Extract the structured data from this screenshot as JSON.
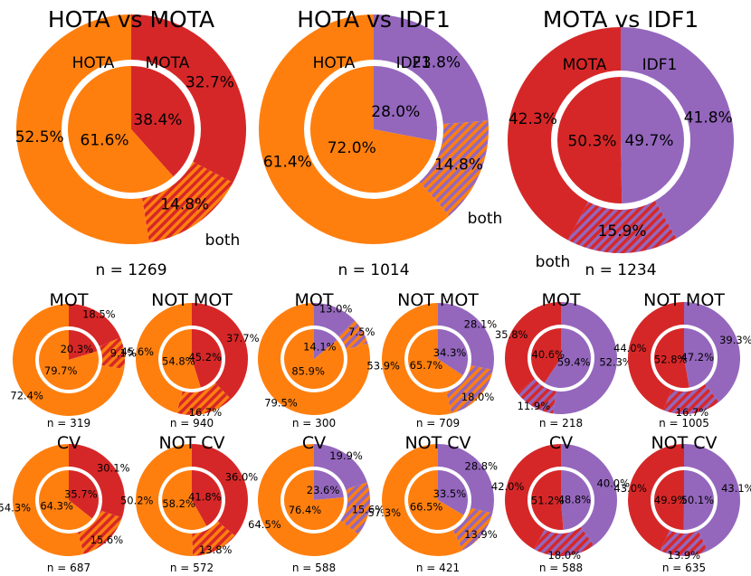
{
  "colors": {
    "orange": "#ff7f0e",
    "red": "#d62728",
    "purple": "#9467bd",
    "ring_gap": "#ffffff"
  },
  "chart_data": [
    {
      "type": "pie",
      "size": "large",
      "title": "HOTA vs MOTA",
      "n_label": "n = 1269",
      "left_metric": "HOTA",
      "right_metric": "MOTA",
      "left_color": "orange",
      "right_color": "red",
      "outer": [
        {
          "label": "MOTA",
          "value": 32.7,
          "text": "32.7%"
        },
        {
          "label": "both",
          "value": 14.8,
          "text": "14.8%"
        },
        {
          "label": "HOTA",
          "value": 52.5,
          "text": "52.5%"
        }
      ],
      "inner": [
        {
          "label": "MOTA",
          "value": 38.4,
          "text": "38.4%"
        },
        {
          "label": "HOTA",
          "value": 61.6,
          "text": "61.6%"
        }
      ],
      "category_labels": [
        "HOTA",
        "MOTA",
        "both"
      ]
    },
    {
      "type": "pie",
      "size": "large",
      "title": "HOTA vs IDF1",
      "n_label": "n = 1014",
      "left_metric": "HOTA",
      "right_metric": "IDF1",
      "left_color": "orange",
      "right_color": "purple",
      "outer": [
        {
          "label": "IDF1",
          "value": 23.8,
          "text": "23.8%"
        },
        {
          "label": "both",
          "value": 14.8,
          "text": "14.8%"
        },
        {
          "label": "HOTA",
          "value": 61.4,
          "text": "61.4%"
        }
      ],
      "inner": [
        {
          "label": "IDF1",
          "value": 28.0,
          "text": "28.0%"
        },
        {
          "label": "HOTA",
          "value": 72.0,
          "text": "72.0%"
        }
      ],
      "category_labels": [
        "HOTA",
        "IDF1",
        "both"
      ]
    },
    {
      "type": "pie",
      "size": "large",
      "title": "MOTA vs IDF1",
      "n_label": "n = 1234",
      "left_metric": "MOTA",
      "right_metric": "IDF1",
      "left_color": "red",
      "right_color": "purple",
      "outer": [
        {
          "label": "IDF1",
          "value": 41.8,
          "text": "41.8%"
        },
        {
          "label": "both",
          "value": 15.9,
          "text": "15.9%"
        },
        {
          "label": "MOTA",
          "value": 42.3,
          "text": "42.3%"
        }
      ],
      "inner": [
        {
          "label": "IDF1",
          "value": 49.7,
          "text": "49.7%"
        },
        {
          "label": "MOTA",
          "value": 50.3,
          "text": "50.3%"
        }
      ],
      "category_labels": [
        "MOTA",
        "IDF1",
        "both"
      ]
    },
    {
      "type": "pie",
      "size": "small",
      "title": "MOT",
      "n_label": "n = 319",
      "left_color": "orange",
      "right_color": "red",
      "outer": [
        {
          "label": "right",
          "value": 18.5,
          "text": "18.5%"
        },
        {
          "label": "both",
          "value": 9.1,
          "text": "9.1%"
        },
        {
          "label": "left",
          "value": 72.4,
          "text": "72.4%"
        }
      ],
      "inner": [
        {
          "label": "right",
          "value": 20.3,
          "text": "20.3%"
        },
        {
          "label": "left",
          "value": 79.7,
          "text": "79.7%"
        }
      ]
    },
    {
      "type": "pie",
      "size": "small",
      "title": "NOT MOT",
      "n_label": "n = 940",
      "left_color": "orange",
      "right_color": "red",
      "outer": [
        {
          "label": "right",
          "value": 37.7,
          "text": "37.7%"
        },
        {
          "label": "both",
          "value": 16.7,
          "text": "16.7%"
        },
        {
          "label": "left",
          "value": 45.6,
          "text": "45.6%"
        }
      ],
      "inner": [
        {
          "label": "right",
          "value": 45.2,
          "text": "45.2%"
        },
        {
          "label": "left",
          "value": 54.8,
          "text": "54.8%"
        }
      ]
    },
    {
      "type": "pie",
      "size": "small",
      "title": "MOT",
      "n_label": "n = 300",
      "left_color": "orange",
      "right_color": "purple",
      "outer": [
        {
          "label": "right",
          "value": 13.0,
          "text": "13.0%"
        },
        {
          "label": "both",
          "value": 7.5,
          "text": "7.5%"
        },
        {
          "label": "left",
          "value": 79.5,
          "text": "79.5%"
        }
      ],
      "inner": [
        {
          "label": "right",
          "value": 14.1,
          "text": "14.1%"
        },
        {
          "label": "left",
          "value": 85.9,
          "text": "85.9%"
        }
      ]
    },
    {
      "type": "pie",
      "size": "small",
      "title": "NOT MOT",
      "n_label": "n = 709",
      "left_color": "orange",
      "right_color": "purple",
      "outer": [
        {
          "label": "right",
          "value": 28.1,
          "text": "28.1%"
        },
        {
          "label": "both",
          "value": 18.0,
          "text": "18.0%"
        },
        {
          "label": "left",
          "value": 53.9,
          "text": "53.9%"
        }
      ],
      "inner": [
        {
          "label": "right",
          "value": 34.3,
          "text": "34.3%"
        },
        {
          "label": "left",
          "value": 65.7,
          "text": "65.7%"
        }
      ]
    },
    {
      "type": "pie",
      "size": "small",
      "title": "MOT",
      "n_label": "n = 218",
      "left_color": "red",
      "right_color": "purple",
      "outer": [
        {
          "label": "right",
          "value": 52.3,
          "text": "52.3%"
        },
        {
          "label": "both",
          "value": 11.9,
          "text": "11.9%"
        },
        {
          "label": "left",
          "value": 35.8,
          "text": "35.8%"
        }
      ],
      "inner": [
        {
          "label": "right",
          "value": 59.4,
          "text": "59.4%"
        },
        {
          "label": "left",
          "value": 40.6,
          "text": "40.6%"
        }
      ]
    },
    {
      "type": "pie",
      "size": "small",
      "title": "NOT MOT",
      "n_label": "n = 1005",
      "left_color": "red",
      "right_color": "purple",
      "outer": [
        {
          "label": "right",
          "value": 39.3,
          "text": "39.3%"
        },
        {
          "label": "both",
          "value": 16.7,
          "text": "16.7%"
        },
        {
          "label": "left",
          "value": 44.0,
          "text": "44.0%"
        }
      ],
      "inner": [
        {
          "label": "right",
          "value": 47.2,
          "text": "47.2%"
        },
        {
          "label": "left",
          "value": 52.8,
          "text": "52.8%"
        }
      ]
    },
    {
      "type": "pie",
      "size": "small",
      "title": "CV",
      "n_label": "n = 687",
      "left_color": "orange",
      "right_color": "red",
      "outer": [
        {
          "label": "right",
          "value": 30.1,
          "text": "30.1%"
        },
        {
          "label": "both",
          "value": 15.6,
          "text": "15.6%"
        },
        {
          "label": "left",
          "value": 54.3,
          "text": "54.3%"
        }
      ],
      "inner": [
        {
          "label": "right",
          "value": 35.7,
          "text": "35.7%"
        },
        {
          "label": "left",
          "value": 64.3,
          "text": "64.3%"
        }
      ]
    },
    {
      "type": "pie",
      "size": "small",
      "title": "NOT CV",
      "n_label": "n = 572",
      "left_color": "orange",
      "right_color": "red",
      "outer": [
        {
          "label": "right",
          "value": 36.0,
          "text": "36.0%"
        },
        {
          "label": "both",
          "value": 13.8,
          "text": "13.8%"
        },
        {
          "label": "left",
          "value": 50.2,
          "text": "50.2%"
        }
      ],
      "inner": [
        {
          "label": "right",
          "value": 41.8,
          "text": "41.8%"
        },
        {
          "label": "left",
          "value": 58.2,
          "text": "58.2%"
        }
      ]
    },
    {
      "type": "pie",
      "size": "small",
      "title": "CV",
      "n_label": "n = 588",
      "left_color": "orange",
      "right_color": "purple",
      "outer": [
        {
          "label": "right",
          "value": 19.9,
          "text": "19.9%"
        },
        {
          "label": "both",
          "value": 15.6,
          "text": "15.6%"
        },
        {
          "label": "left",
          "value": 64.5,
          "text": "64.5%"
        }
      ],
      "inner": [
        {
          "label": "right",
          "value": 23.6,
          "text": "23.6%"
        },
        {
          "label": "left",
          "value": 76.4,
          "text": "76.4%"
        }
      ]
    },
    {
      "type": "pie",
      "size": "small",
      "title": "NOT CV",
      "n_label": "n = 421",
      "left_color": "orange",
      "right_color": "purple",
      "outer": [
        {
          "label": "right",
          "value": 28.8,
          "text": "28.8%"
        },
        {
          "label": "both",
          "value": 13.9,
          "text": "13.9%"
        },
        {
          "label": "left",
          "value": 57.3,
          "text": "57.3%"
        }
      ],
      "inner": [
        {
          "label": "right",
          "value": 33.5,
          "text": "33.5%"
        },
        {
          "label": "left",
          "value": 66.5,
          "text": "66.5%"
        }
      ]
    },
    {
      "type": "pie",
      "size": "small",
      "title": "CV",
      "n_label": "n = 588",
      "left_color": "red",
      "right_color": "purple",
      "outer": [
        {
          "label": "right",
          "value": 40.0,
          "text": "40.0%"
        },
        {
          "label": "both",
          "value": 18.0,
          "text": "18.0%"
        },
        {
          "label": "left",
          "value": 42.0,
          "text": "42.0%"
        }
      ],
      "inner": [
        {
          "label": "right",
          "value": 48.8,
          "text": "48.8%"
        },
        {
          "label": "left",
          "value": 51.2,
          "text": "51.2%"
        }
      ]
    },
    {
      "type": "pie",
      "size": "small",
      "title": "NOT CV",
      "n_label": "n = 635",
      "left_color": "red",
      "right_color": "purple",
      "outer": [
        {
          "label": "right",
          "value": 43.1,
          "text": "43.1%"
        },
        {
          "label": "both",
          "value": 13.9,
          "text": "13.9%"
        },
        {
          "label": "left",
          "value": 43.0,
          "text": "43.0%"
        }
      ],
      "inner": [
        {
          "label": "right",
          "value": 50.1,
          "text": "50.1%"
        },
        {
          "label": "left",
          "value": 49.9,
          "text": "49.9%"
        }
      ]
    }
  ]
}
